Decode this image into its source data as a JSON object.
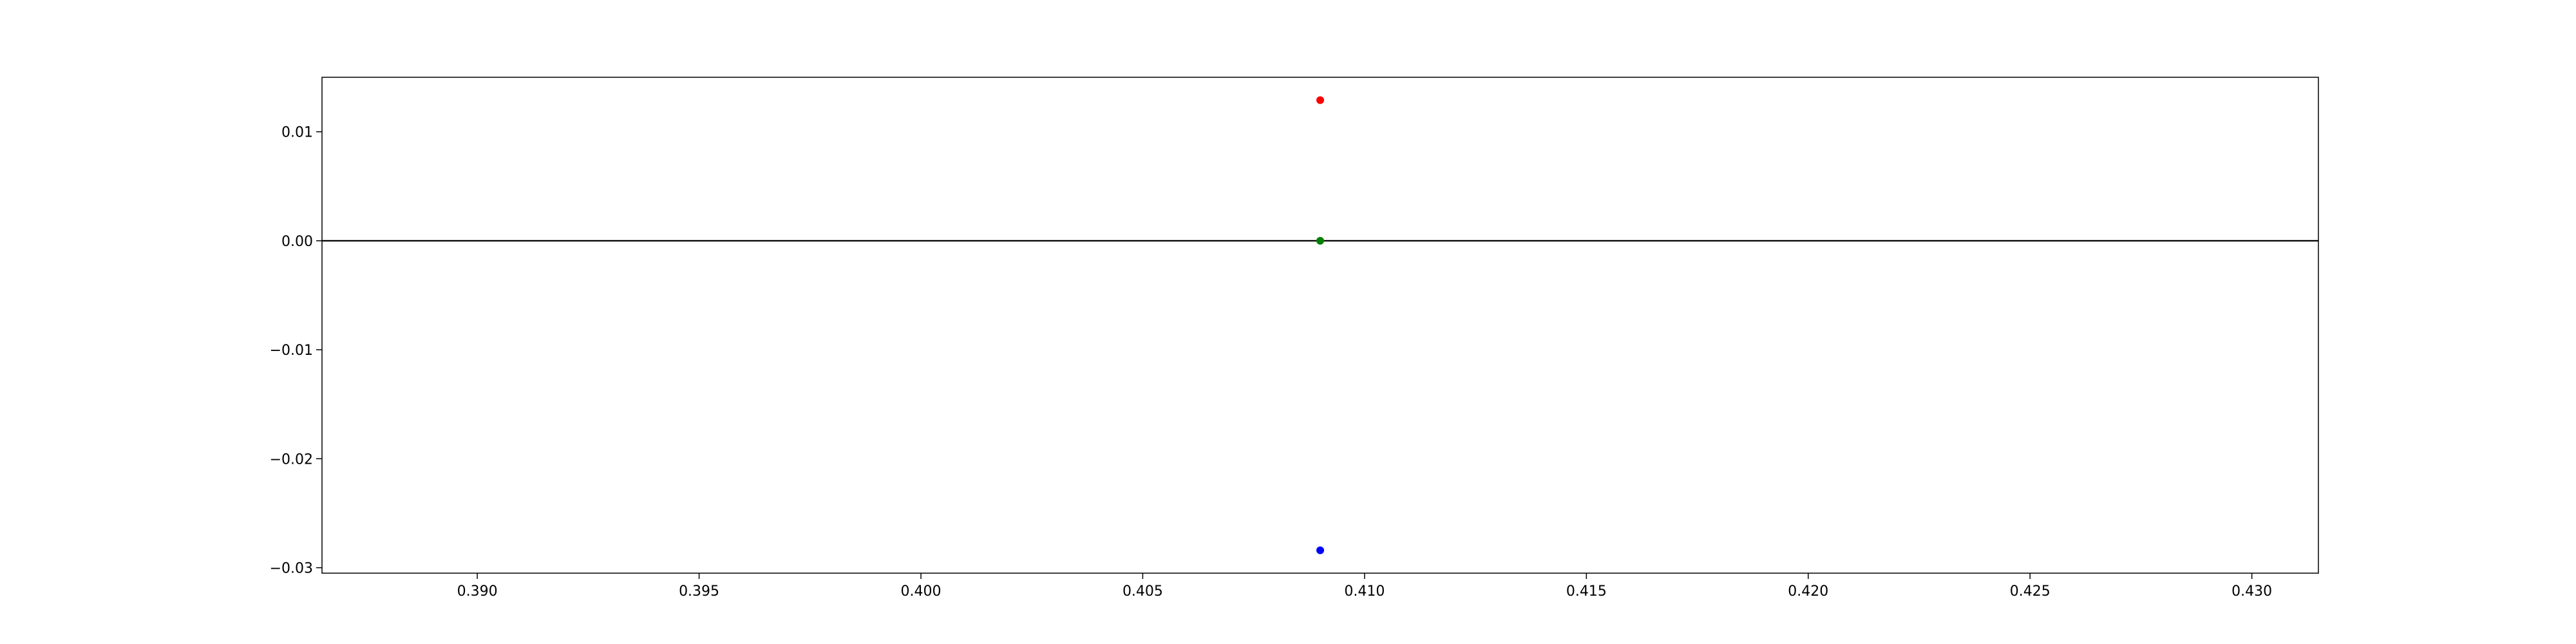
{
  "chart_data": {
    "type": "scatter",
    "xlim": [
      0.3865,
      0.4315
    ],
    "ylim": [
      -0.0305,
      0.015
    ],
    "x_ticks": [
      {
        "value": 0.39,
        "label": "0.390"
      },
      {
        "value": 0.395,
        "label": "0.395"
      },
      {
        "value": 0.4,
        "label": "0.400"
      },
      {
        "value": 0.405,
        "label": "0.405"
      },
      {
        "value": 0.41,
        "label": "0.410"
      },
      {
        "value": 0.415,
        "label": "0.415"
      },
      {
        "value": 0.42,
        "label": "0.420"
      },
      {
        "value": 0.425,
        "label": "0.425"
      },
      {
        "value": 0.43,
        "label": "0.430"
      }
    ],
    "y_ticks": [
      {
        "value": 0.01,
        "label": "0.01"
      },
      {
        "value": 0.0,
        "label": "0.00"
      },
      {
        "value": -0.01,
        "label": "−0.01"
      },
      {
        "value": -0.02,
        "label": "−0.02"
      },
      {
        "value": -0.03,
        "label": "−0.03"
      }
    ],
    "hline": {
      "y": 0.0,
      "color": "#000000"
    },
    "points": [
      {
        "x": 0.409,
        "y": 0.0129,
        "color": "#ff0000"
      },
      {
        "x": 0.409,
        "y": 0.0,
        "color": "#008000"
      },
      {
        "x": 0.409,
        "y": -0.0284,
        "color": "#0000ff"
      }
    ],
    "grid": false,
    "title": "",
    "xlabel": "",
    "ylabel": ""
  }
}
